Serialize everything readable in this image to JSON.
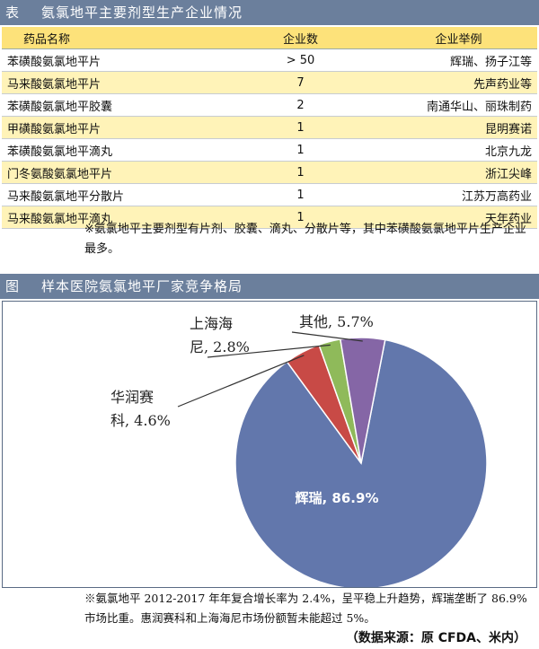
{
  "table_section": {
    "tag": "表",
    "title": "氨氯地平主要剂型生产企业情况",
    "headers": [
      "药品名称",
      "企业数",
      "企业举例"
    ],
    "rows": [
      [
        "苯磺酸氨氯地平片",
        "> 50",
        "辉瑞、扬子江等"
      ],
      [
        "马来酸氨氯地平片",
        "7",
        "先声药业等"
      ],
      [
        "苯磺酸氨氯地平胶囊",
        "2",
        "南通华山、丽珠制药"
      ],
      [
        "甲磺酸氨氯地平片",
        "1",
        "昆明赛诺"
      ],
      [
        "苯磺酸氨氯地平滴丸",
        "1",
        "北京九龙"
      ],
      [
        "门冬氨酸氨氯地平片",
        "1",
        "浙江尖峰"
      ],
      [
        "马来酸氨氯地平分散片",
        "1",
        "江苏万高药业"
      ],
      [
        "马来酸氨氯地平滴丸",
        "1",
        "天年药业"
      ]
    ],
    "note": "※氨氯地平主要剂型有片剂、胶囊、滴丸、分散片等，其中苯磺酸氨氯地平片生产企业最多。"
  },
  "chart_section": {
    "tag": "图",
    "title": "样本医院氨氯地平厂家竞争格局",
    "note": "※氨氯地平 2012-2017 年年复合增长率为 2.4%，呈平稳上升趋势，辉瑞垄断了 86.9% 市场比重。惠润赛科和上海海尼市场份额暂未能超过 5%。",
    "source": "（数据来源：原 CFDA、米内）"
  },
  "chart_data": {
    "type": "pie",
    "slices": [
      {
        "label": "辉瑞",
        "value": 86.9,
        "display": "86.9%",
        "color": "#6277ac"
      },
      {
        "label": "华润赛科",
        "value": 4.6,
        "display": "4.6%",
        "color": "#c84a46"
      },
      {
        "label": "上海海尼",
        "value": 2.8,
        "display": "2.8%",
        "color": "#8fba5a"
      },
      {
        "label": "其他",
        "value": 5.7,
        "display": "5.7%",
        "color": "#8566a6"
      }
    ],
    "labels": {
      "main": "辉瑞, 86.9%",
      "hrsk_l1": "华润赛",
      "hrsk_l2": "科, 4.6%",
      "shhn_l1": "上海海",
      "shhn_l2": "尼, 2.8%",
      "other": "其他, 5.7%"
    }
  }
}
